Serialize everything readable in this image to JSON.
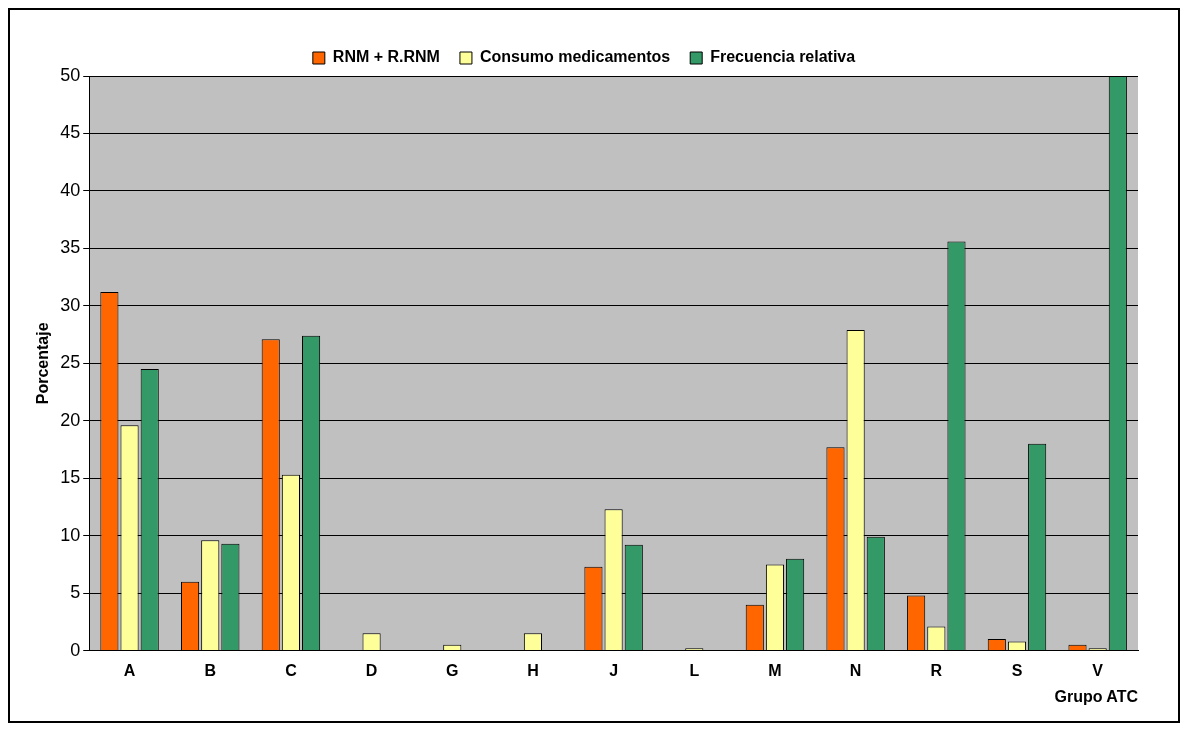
{
  "chart_data": {
    "type": "bar",
    "xlabel": "Grupo ATC",
    "ylabel": "Porcentaje",
    "categories": [
      "A",
      "B",
      "C",
      "D",
      "G",
      "H",
      "J",
      "L",
      "M",
      "N",
      "R",
      "S",
      "V"
    ],
    "series": [
      {
        "name": "RNM + R.RNM",
        "color": "#ff6600",
        "values": [
          31.2,
          6,
          27.1,
          0,
          0,
          0,
          7.3,
          0,
          4,
          17.7,
          4.8,
          1,
          0.5
        ]
      },
      {
        "name": "Consumo medicamentos",
        "color": "#ffff99",
        "values": [
          19.6,
          9.6,
          15.3,
          1.5,
          0.5,
          1.5,
          12.3,
          0.2,
          7.5,
          27.9,
          2.1,
          0.8,
          0.2
        ]
      },
      {
        "name": "Frecuencia relativa",
        "color": "#339966",
        "values": [
          24.5,
          9.3,
          27.4,
          0,
          0,
          0,
          9.2,
          0,
          8,
          9.9,
          35.6,
          18,
          50
        ]
      }
    ],
    "ylim": [
      0,
      50
    ],
    "yticks": [
      0,
      5,
      10,
      15,
      20,
      25,
      30,
      35,
      40,
      45,
      50
    ],
    "grid": "y",
    "legend": "top"
  }
}
